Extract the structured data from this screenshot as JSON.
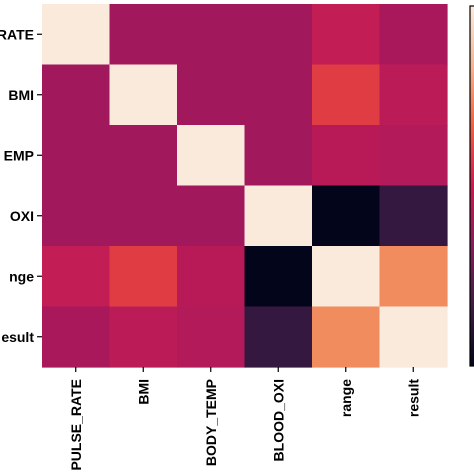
{
  "chart_data": {
    "type": "heatmap",
    "rows": [
      "PULSE_RATE",
      "BMI",
      "BODY_TEMP",
      "BLOOD_OXI",
      "range",
      "result"
    ],
    "columns": [
      "PULSE_RATE",
      "BMI",
      "BODY_TEMP",
      "BLOOD_OXI",
      "range",
      "result"
    ],
    "visible_row_labels": [
      "RATE",
      "BMI",
      "EMP",
      "OXI",
      "nge",
      "esult"
    ],
    "cell_colors": [
      [
        "#faeadc",
        "#a1185c",
        "#a1185c",
        "#a1185c",
        "#c21d55",
        "#a8185b"
      ],
      [
        "#a1185c",
        "#faeadc",
        "#a1185c",
        "#a1185c",
        "#e03c43",
        "#bb1b57"
      ],
      [
        "#a1185c",
        "#a1185c",
        "#faeadc",
        "#a1185c",
        "#b81a58",
        "#b31a59"
      ],
      [
        "#a1185c",
        "#a1185c",
        "#a1185c",
        "#faeadc",
        "#03051a",
        "#34183f"
      ],
      [
        "#c21d55",
        "#e03c43",
        "#b81a58",
        "#03051a",
        "#faeadc",
        "#f08c5e"
      ],
      [
        "#a8185b",
        "#bb1b57",
        "#b31a59",
        "#34183f",
        "#f08c5e",
        "#faeadc"
      ]
    ],
    "colorbar": {
      "colormap": "rocket",
      "ticks": []
    },
    "title": "",
    "xlabel": "",
    "ylabel": ""
  }
}
